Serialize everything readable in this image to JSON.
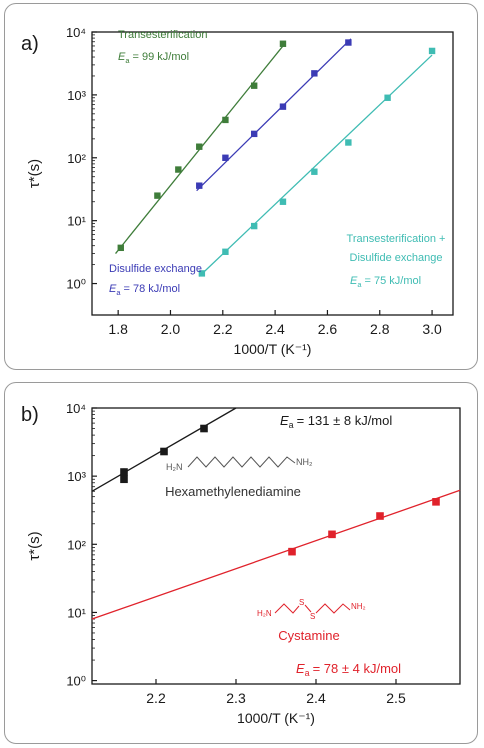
{
  "chart_data": [
    {
      "type": "scatter",
      "panel_label": "a)",
      "xlabel": "1000/T (K⁻¹)",
      "ylabel": "τ*(s)",
      "xlim": [
        1.7,
        3.08
      ],
      "ylim_log10": [
        -0.5,
        4.0
      ],
      "y_scale": "log",
      "x_ticks": [
        "1.8",
        "2.0",
        "2.2",
        "2.4",
        "2.6",
        "2.8",
        "3.0"
      ],
      "y_ticks": [
        "10⁰",
        "10¹",
        "10²",
        "10³",
        "10⁴"
      ],
      "series": [
        {
          "color": "#3f7d3a",
          "label_lines": [
            "Transesterification"
          ],
          "energy_label": "= 99 kJ/mol",
          "x": [
            1.81,
            1.95,
            2.03,
            2.11,
            2.21,
            2.32,
            2.43
          ],
          "y": [
            3.7,
            25,
            65,
            150,
            400,
            1400,
            6500
          ],
          "fit": [
            [
              1.79,
              3.0
            ],
            [
              2.43,
              6000
            ]
          ]
        },
        {
          "color": "#3b3bb5",
          "label_lines": [
            "Disulfide exchange"
          ],
          "energy_label": "= 78 kJ/mol",
          "x": [
            2.11,
            2.21,
            2.32,
            2.43,
            2.55,
            2.68
          ],
          "y": [
            36,
            100,
            240,
            650,
            2200,
            6800
          ],
          "fit": [
            [
              2.1,
              30
            ],
            [
              2.69,
              7800
            ]
          ]
        },
        {
          "color": "#3fbcb3",
          "label_lines": [
            "Transesterification +",
            "Disulfide exchange"
          ],
          "energy_label": "= 75 kJ/mol",
          "x": [
            2.12,
            2.21,
            2.32,
            2.43,
            2.55,
            2.68,
            2.83,
            3.0
          ],
          "y": [
            1.45,
            3.2,
            8.2,
            20,
            60,
            175,
            900,
            5000
          ],
          "fit": [
            [
              2.11,
              1.3
            ],
            [
              3.0,
              4300
            ]
          ]
        }
      ]
    },
    {
      "type": "scatter",
      "panel_label": "b)",
      "xlabel": "1000/T (K⁻¹)",
      "ylabel": "τ*(s)",
      "xlim": [
        2.12,
        2.58
      ],
      "ylim_log10": [
        -0.05,
        4.0
      ],
      "y_scale": "log",
      "x_ticks": [
        "2.2",
        "2.3",
        "2.4",
        "2.5"
      ],
      "y_ticks": [
        "10⁰",
        "10¹",
        "10²",
        "10³",
        "10⁴"
      ],
      "series": [
        {
          "color": "#1a1a1a",
          "name": "Hexamethylenediamine",
          "energy_label": "= 131 ± 8 kJ/mol",
          "x": [
            2.16,
            2.16,
            2.21,
            2.26
          ],
          "y": [
            900,
            1150,
            2300,
            5000
          ],
          "y_err": [
            0,
            150,
            0,
            0
          ],
          "fit": [
            [
              2.12,
              600
            ],
            [
              2.3,
              10000
            ]
          ]
        },
        {
          "color": "#e0222b",
          "name": "Cystamine",
          "energy_label": "= 78 ± 4 kJ/mol",
          "x": [
            2.37,
            2.42,
            2.48,
            2.55
          ],
          "y": [
            78,
            140,
            260,
            420
          ],
          "fit": [
            [
              2.12,
              8
            ],
            [
              2.58,
              620
            ]
          ]
        }
      ]
    }
  ],
  "structures": {
    "hexamethylenediamine": {
      "left_group": "H₂N",
      "right_group": "NH₂"
    },
    "cystamine": {
      "left_group": "H₂N",
      "right_group": "NH₂",
      "heteroatom": "S"
    }
  },
  "energy_symbol": "E",
  "energy_subscript": "a"
}
